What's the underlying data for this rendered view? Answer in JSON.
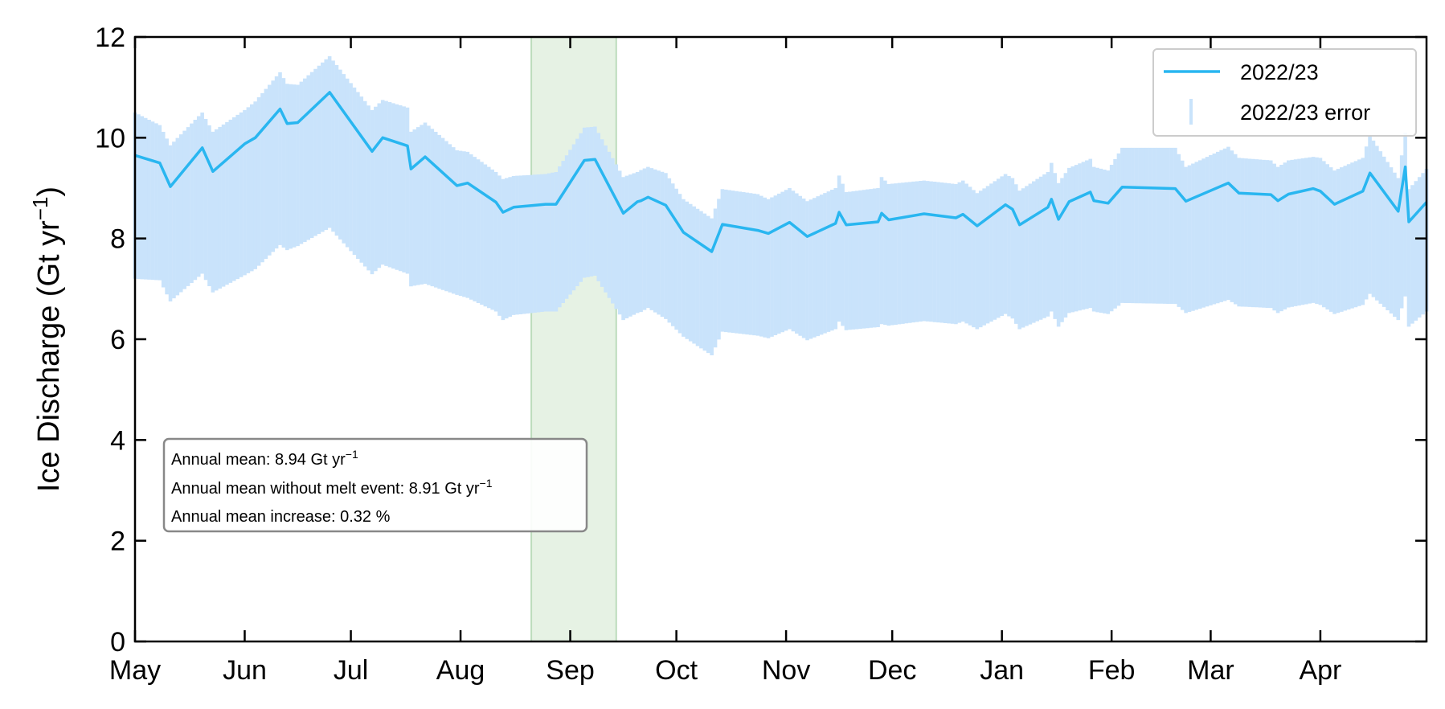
{
  "chart_data": {
    "type": "line",
    "ylabel": "Ice Discharge (Gt yr",
    "ylabel_sup": "−1",
    "ylabel_close": ")",
    "ylim": [
      0,
      12
    ],
    "yticks": [
      0,
      2,
      4,
      6,
      8,
      10,
      12
    ],
    "xlim": [
      0,
      365
    ],
    "xticks": [
      {
        "label": "May",
        "day": 0
      },
      {
        "label": "Jun",
        "day": 31
      },
      {
        "label": "Jul",
        "day": 61
      },
      {
        "label": "Aug",
        "day": 92
      },
      {
        "label": "Sep",
        "day": 123
      },
      {
        "label": "Oct",
        "day": 153
      },
      {
        "label": "Nov",
        "day": 184
      },
      {
        "label": "Dec",
        "day": 214
      },
      {
        "label": "Jan",
        "day": 245
      },
      {
        "label": "Feb",
        "day": 276
      },
      {
        "label": "Mar",
        "day": 304
      },
      {
        "label": "Apr",
        "day": 335
      }
    ],
    "shaded_region": {
      "start_day": 112,
      "end_day": 136,
      "color": "#e3f1e1",
      "edge_color": "#bcdcbc"
    },
    "legend": {
      "placement": "top-right",
      "entries": [
        "2022/23",
        "2022/23 error"
      ]
    },
    "series": [
      {
        "name": "2022/23",
        "color": "#29b6f0",
        "error_color": "#c9e3fb",
        "x": [
          0,
          7,
          10,
          19,
          22,
          31,
          34,
          41,
          43,
          46,
          55,
          67,
          70,
          77,
          78,
          82,
          91,
          94,
          102,
          104,
          107,
          116,
          119,
          127,
          130,
          138,
          142,
          143,
          145,
          150,
          155,
          163,
          166,
          176,
          179,
          185,
          190,
          198,
          199,
          201,
          210,
          211,
          213,
          223,
          232,
          234,
          238,
          246,
          248,
          250,
          258,
          259,
          261,
          264,
          270,
          271,
          275,
          279,
          294,
          297,
          309,
          312,
          321,
          323,
          326,
          333,
          335,
          339,
          347,
          349,
          357,
          359,
          360,
          365
        ],
        "y": [
          9.65,
          9.5,
          9.03,
          9.8,
          9.33,
          9.88,
          10.0,
          10.57,
          10.28,
          10.3,
          10.9,
          9.73,
          10.0,
          9.84,
          9.38,
          9.62,
          9.05,
          9.1,
          8.72,
          8.52,
          8.62,
          8.68,
          8.68,
          9.55,
          9.57,
          8.5,
          8.73,
          8.75,
          8.82,
          8.66,
          8.12,
          7.74,
          8.28,
          8.16,
          8.1,
          8.32,
          8.04,
          8.3,
          8.52,
          8.27,
          8.33,
          8.5,
          8.37,
          8.49,
          8.41,
          8.48,
          8.25,
          8.67,
          8.58,
          8.27,
          8.62,
          8.78,
          8.38,
          8.73,
          8.92,
          8.75,
          8.7,
          9.02,
          8.99,
          8.74,
          9.1,
          8.9,
          8.87,
          8.75,
          8.88,
          8.99,
          8.94,
          8.68,
          8.94,
          9.3,
          8.54,
          9.42,
          8.33,
          8.72
        ],
        "error_lower": [
          7.2,
          7.17,
          6.75,
          7.3,
          6.93,
          7.27,
          7.39,
          7.87,
          7.77,
          7.85,
          8.21,
          7.29,
          7.48,
          7.3,
          7.05,
          7.1,
          6.88,
          6.82,
          6.55,
          6.38,
          6.48,
          6.55,
          6.55,
          7.22,
          7.26,
          6.38,
          6.52,
          6.54,
          6.62,
          6.4,
          6.05,
          5.68,
          6.15,
          6.07,
          6.02,
          6.2,
          5.98,
          6.2,
          6.35,
          6.18,
          6.24,
          6.3,
          6.27,
          6.36,
          6.3,
          6.35,
          6.2,
          6.5,
          6.41,
          6.2,
          6.45,
          6.55,
          6.25,
          6.52,
          6.62,
          6.55,
          6.5,
          6.72,
          6.7,
          6.52,
          6.78,
          6.65,
          6.62,
          6.52,
          6.63,
          6.72,
          6.68,
          6.5,
          6.68,
          6.9,
          6.38,
          6.85,
          6.25,
          6.55
        ],
        "error_upper": [
          10.5,
          10.25,
          9.85,
          10.5,
          10.12,
          10.55,
          10.72,
          11.3,
          11.07,
          11.05,
          11.62,
          10.55,
          10.75,
          10.6,
          10.12,
          10.3,
          9.75,
          9.72,
          9.32,
          9.18,
          9.24,
          9.28,
          9.32,
          10.2,
          10.22,
          9.22,
          9.32,
          9.36,
          9.42,
          9.3,
          8.78,
          8.4,
          8.98,
          8.88,
          8.78,
          9.0,
          8.74,
          9.0,
          9.25,
          8.92,
          9.0,
          9.22,
          9.08,
          9.15,
          9.08,
          9.15,
          8.9,
          9.28,
          9.2,
          8.95,
          9.32,
          9.5,
          9.1,
          9.4,
          9.58,
          9.42,
          9.35,
          9.8,
          9.8,
          9.42,
          9.82,
          9.6,
          9.55,
          9.42,
          9.55,
          9.62,
          9.6,
          9.35,
          9.6,
          10.05,
          9.2,
          10.1,
          8.98,
          9.38
        ]
      }
    ],
    "annotation": {
      "line1_prefix": "Annual mean: 8.94 Gt yr",
      "line2_prefix": "Annual mean without melt event: 8.91  Gt yr",
      "unit_sup": "−1",
      "line3": "Annual mean increase: 0.32 %"
    }
  }
}
